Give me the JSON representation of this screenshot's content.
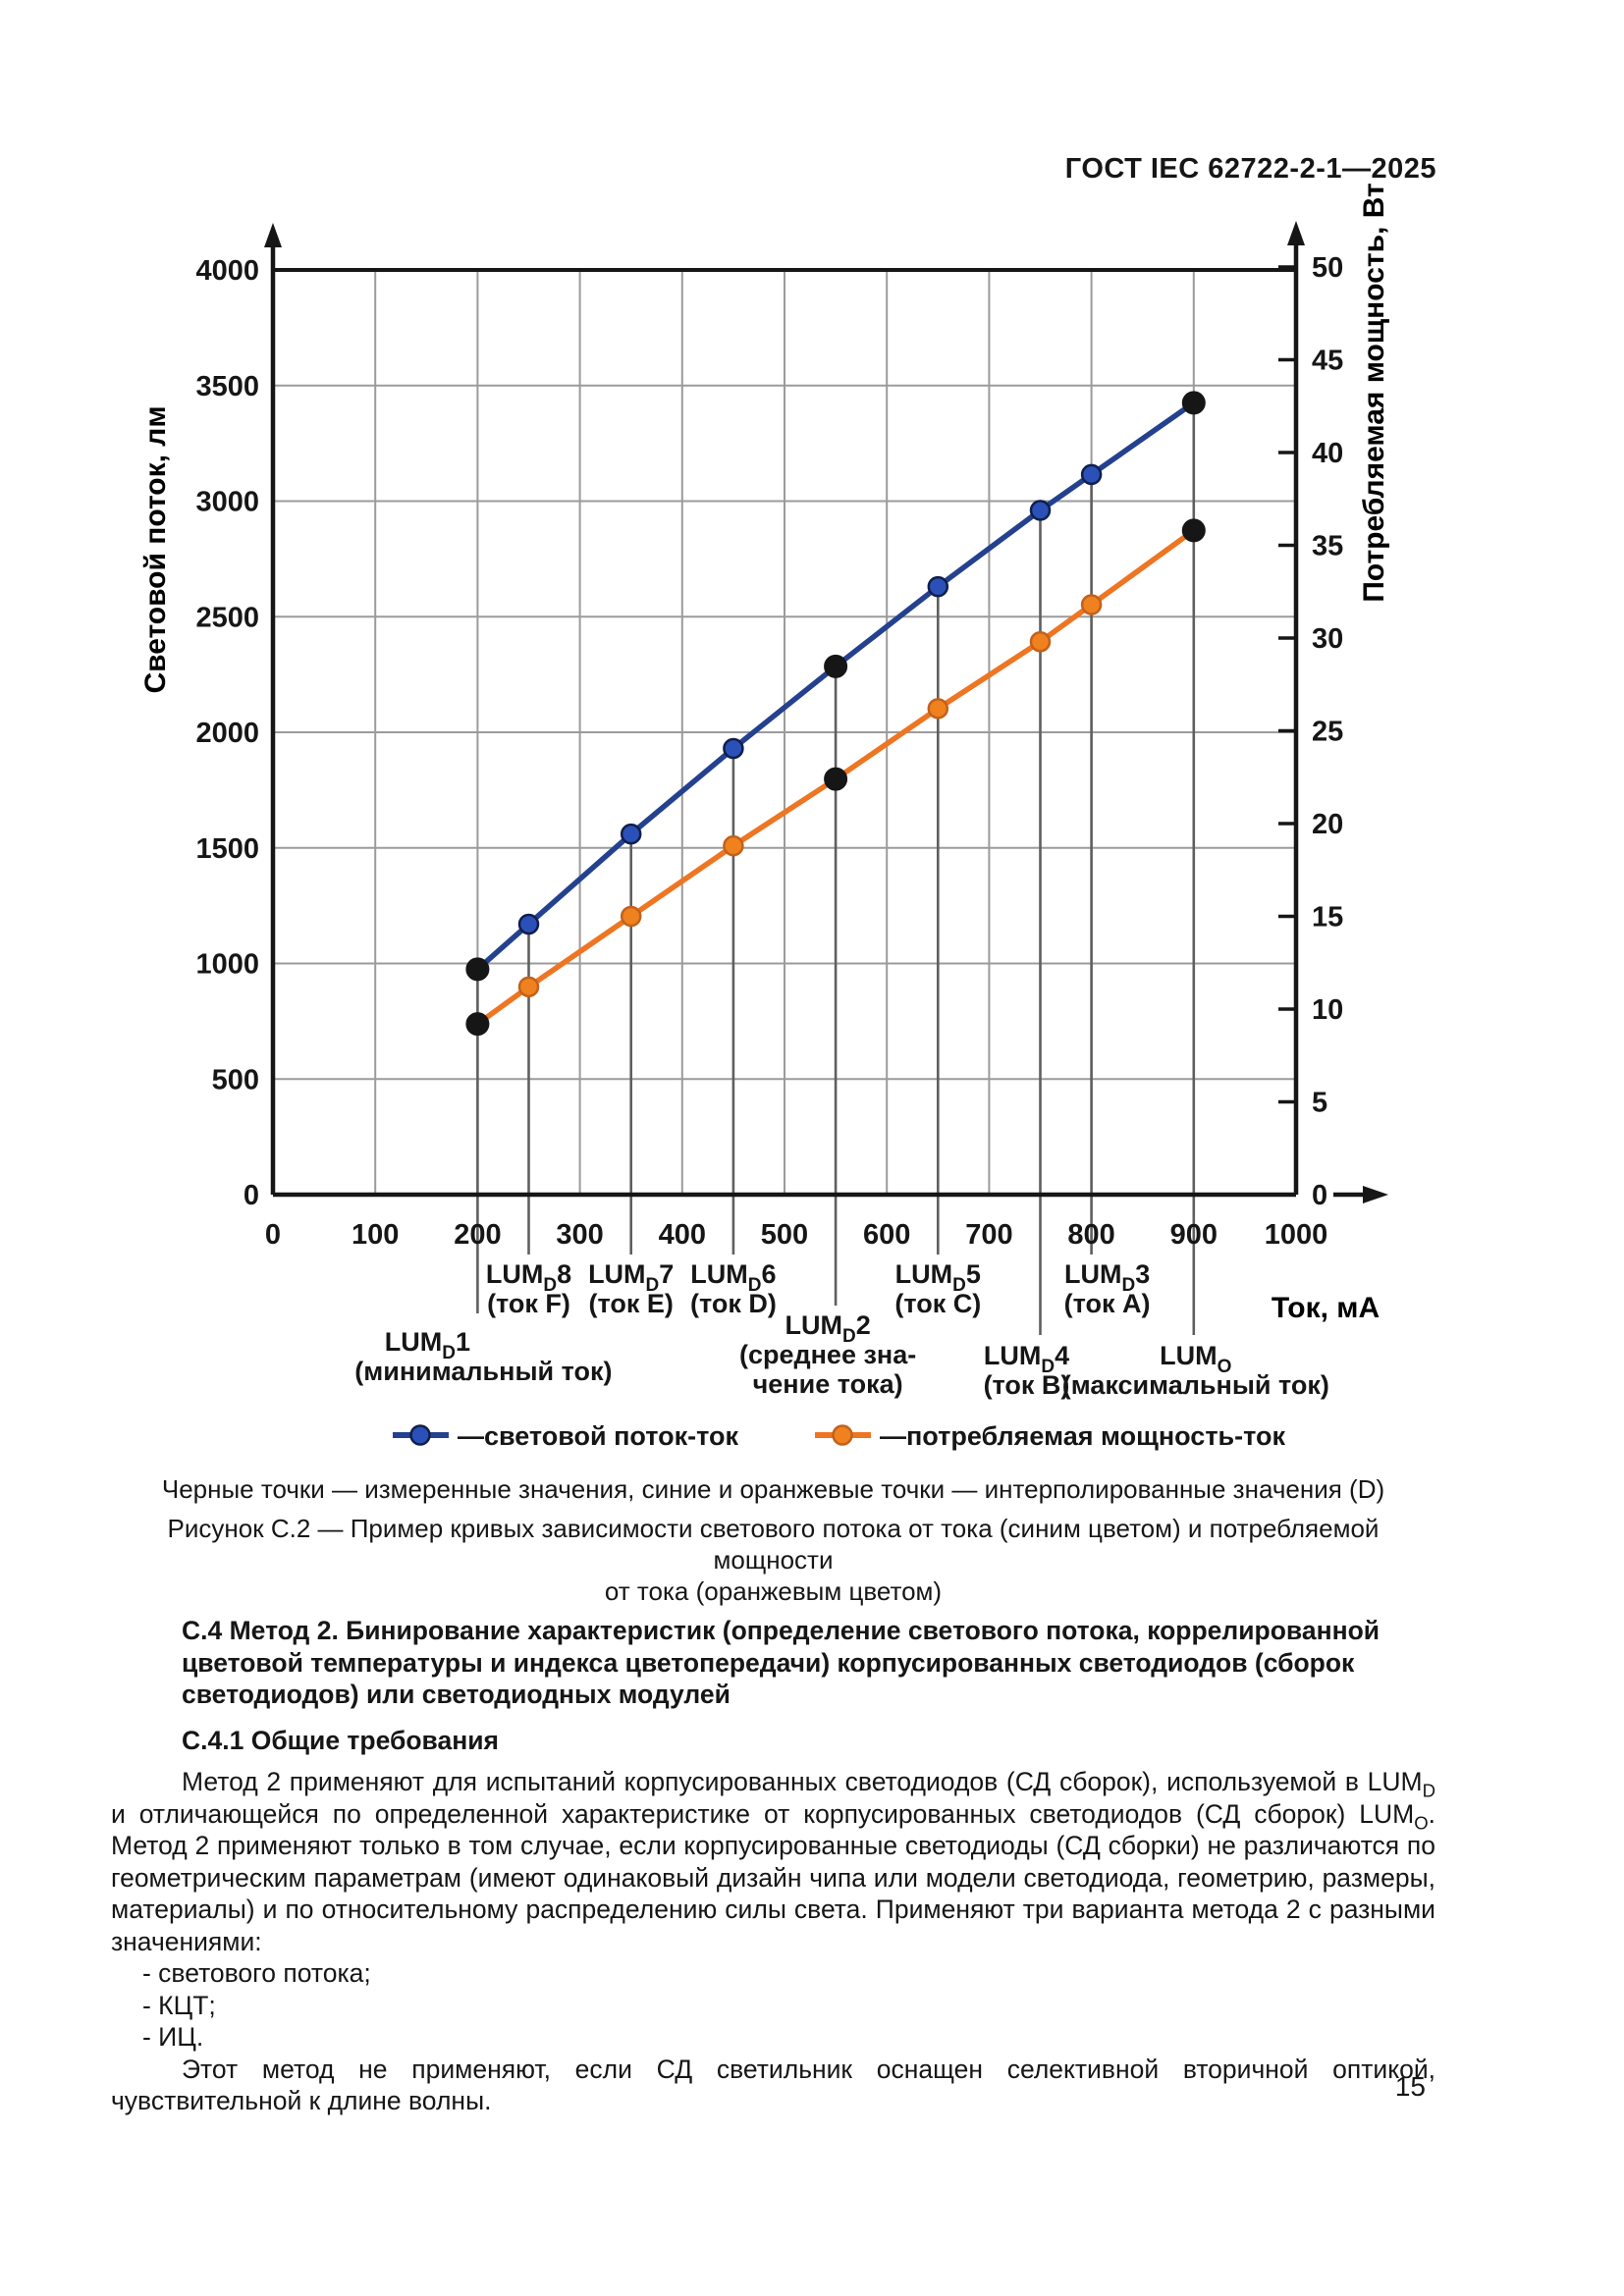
{
  "page": {
    "header": "ГОСТ IEC 62722-2-1—2025",
    "number": "15"
  },
  "figure": {
    "note": "Черные точки — измеренные значения, синие и оранжевые точки — интерполированные значения (D)",
    "caption_line1": "Рисунок С.2 — Пример кривых зависимости светового потока от тока (синим цветом) и потребляемой мощности",
    "caption_line2": "от тока (оранжевым цветом)",
    "legend": [
      {
        "label": "—световой поток-ток",
        "color": "#24418f",
        "dot": "#2b50b8",
        "dot_edge": "#101f4a"
      },
      {
        "label": "—потребляемая мощность-ток",
        "color": "#ee7522",
        "dot": "#f0811f",
        "dot_edge": "#c2611c"
      }
    ]
  },
  "chart_data": {
    "type": "line",
    "title": "",
    "x_axis": {
      "label": "Ток, мА",
      "min": 0,
      "max": 1000,
      "ticks": [
        0,
        100,
        200,
        300,
        400,
        500,
        600,
        700,
        800,
        900,
        1000
      ],
      "grid": true
    },
    "y_axis_left": {
      "label": "Световой поток, лм",
      "min": 0,
      "max": 4000,
      "ticks": [
        0,
        500,
        1000,
        1500,
        2000,
        2500,
        3000,
        3500,
        4000
      ],
      "grid": true
    },
    "y_axis_right": {
      "label": "Потребляемая мощность, Вт",
      "min": 0,
      "max": 50,
      "ticks": [
        0,
        5,
        10,
        15,
        20,
        25,
        30,
        35,
        40,
        45,
        50
      ],
      "grid": false
    },
    "series": [
      {
        "name": "световой поток-ток",
        "axis": "left",
        "color": "#24418f",
        "point_color": "#2b50b8",
        "point_edge": "#101f4a",
        "measured_color": "#161616",
        "x": [
          200,
          250,
          350,
          450,
          550,
          650,
          750,
          800,
          900
        ],
        "y": [
          975,
          1170,
          1560,
          1930,
          2285,
          2630,
          2960,
          3115,
          3425
        ],
        "measured_x": [
          200,
          550,
          900
        ]
      },
      {
        "name": "потребляемая мощность-ток",
        "axis": "right",
        "color": "#ee7522",
        "point_color": "#f0811f",
        "point_edge": "#c2611c",
        "measured_color": "#161616",
        "x": [
          200,
          250,
          350,
          450,
          550,
          650,
          750,
          800,
          900
        ],
        "y": [
          9.2,
          11.2,
          15,
          18.8,
          22.4,
          26.2,
          29.8,
          31.8,
          35.8
        ],
        "measured_x": [
          200,
          550,
          900
        ]
      }
    ],
    "legend_position": "bottom",
    "point_labels": [
      {
        "x": 200,
        "row": "outside",
        "dx": 6,
        "lines": [
          {
            "dx": -57,
            "segs": [
              {
                "t": "LUM"
              },
              {
                "t": "D",
                "sub": true
              },
              {
                "t": "1"
              }
            ]
          },
          {
            "segs": [
              {
                "t": "(минимальный ток)"
              }
            ]
          }
        ]
      },
      {
        "x": 250,
        "row": "upper",
        "lines": [
          {
            "segs": [
              {
                "t": "LUM"
              },
              {
                "t": "D",
                "sub": true
              },
              {
                "t": "8"
              }
            ]
          },
          {
            "segs": [
              {
                "t": "(ток F)"
              }
            ]
          }
        ]
      },
      {
        "x": 350,
        "row": "upper",
        "lines": [
          {
            "segs": [
              {
                "t": "LUM"
              },
              {
                "t": "D",
                "sub": true
              },
              {
                "t": "7"
              }
            ]
          },
          {
            "segs": [
              {
                "t": "(ток E)"
              }
            ]
          }
        ]
      },
      {
        "x": 450,
        "row": "upper",
        "lines": [
          {
            "segs": [
              {
                "t": "LUM"
              },
              {
                "t": "D",
                "sub": true
              },
              {
                "t": "6"
              }
            ]
          },
          {
            "segs": [
              {
                "t": "(ток D)"
              }
            ]
          }
        ]
      },
      {
        "x": 550,
        "row": "mid",
        "dx": -8,
        "lines": [
          {
            "segs": [
              {
                "t": "LUM"
              },
              {
                "t": "D",
                "sub": true
              },
              {
                "t": "2"
              }
            ]
          },
          {
            "segs": [
              {
                "t": "(среднее зна-"
              }
            ]
          },
          {
            "segs": [
              {
                "t": "чение тока)"
              }
            ]
          }
        ]
      },
      {
        "x": 650,
        "row": "upper",
        "lines": [
          {
            "segs": [
              {
                "t": "LUM"
              },
              {
                "t": "D",
                "sub": true
              },
              {
                "t": "5"
              }
            ]
          },
          {
            "segs": [
              {
                "t": "(ток C)"
              }
            ]
          }
        ]
      },
      {
        "x": 750,
        "row": "lower",
        "dx": -14,
        "lines": [
          {
            "segs": [
              {
                "t": "LUM"
              },
              {
                "t": "D",
                "sub": true
              },
              {
                "t": "4"
              }
            ]
          },
          {
            "segs": [
              {
                "t": "(ток B)"
              }
            ]
          }
        ]
      },
      {
        "x": 800,
        "row": "upper",
        "dx": 16,
        "lines": [
          {
            "segs": [
              {
                "t": "LUM"
              },
              {
                "t": "D",
                "sub": true
              },
              {
                "t": "3"
              }
            ]
          },
          {
            "segs": [
              {
                "t": "(ток A)"
              }
            ]
          }
        ]
      },
      {
        "x": 900,
        "row": "lower",
        "dx": 2,
        "lines": [
          {
            "segs": [
              {
                "t": "LUM"
              },
              {
                "t": "O",
                "sub": true
              }
            ]
          },
          {
            "segs": [
              {
                "t": "(максимальный ток)"
              }
            ]
          }
        ]
      }
    ]
  },
  "section": {
    "h1": "С.4  Метод 2. Бинирование характеристик (определение светового потока, коррелированной цветовой температуры и индекса цветопередачи) корпусированных светодиодов (сборок светодиодов) или светодиодных модулей",
    "h2": "С.4.1  Общие требования",
    "p1": [
      {
        "t": "Метод 2 применяют для испытаний корпусированных светодиодов (СД сборок), используемой в LUM"
      },
      {
        "t": "D",
        "sub": true
      },
      {
        "t": " и отличающейся по определенной характеристике от корпусированных светодиодов (СД сборок) LUM"
      },
      {
        "t": "O",
        "sub": true
      },
      {
        "t": ". Метод 2 применяют только в том случае, если корпусированные светодиоды (СД сборки) не различаются по геометрическим параметрам (имеют одинаковый дизайн чипа или модели светодиода, геометрию, размеры, материалы) и по относительному распределению силы света. Применяют три варианта метода 2 с разными значениями:"
      }
    ],
    "bullets": [
      "- светового потока;",
      "- КЦТ;",
      "- ИЦ."
    ],
    "p2": "Этот метод не применяют, если СД светильник оснащен селективной вторичной оптикой, чувствительной к длине волны."
  }
}
